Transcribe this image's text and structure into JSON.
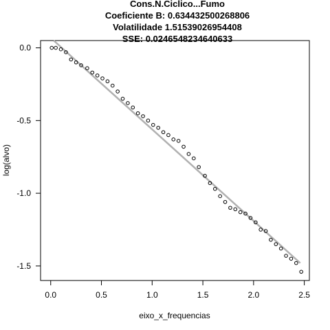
{
  "chart_data": {
    "type": "scatter",
    "title_lines": [
      "Cons.N.Ciclico...Fumo",
      "Coeficiente B:  0.634432500268806",
      "Volatilidade 1.51539026954408",
      "SSE: 0.0246548234640633"
    ],
    "xlabel": "eixo_x_frequencias",
    "ylabel": "log(alvo)",
    "xlim": [
      -0.1,
      2.55
    ],
    "ylim": [
      -1.6,
      0.05
    ],
    "x_ticks": [
      0.0,
      0.5,
      1.0,
      1.5,
      2.0,
      2.5
    ],
    "x_tick_labels": [
      "0.0",
      "0.5",
      "1.0",
      "1.5",
      "2.0",
      "2.5"
    ],
    "y_ticks": [
      0.0,
      -0.5,
      -1.0,
      -1.5
    ],
    "y_tick_labels": [
      "0.0",
      "-0.5",
      "-1.0",
      "-1.5"
    ],
    "grid": false,
    "series": [
      {
        "kind": "points",
        "marker": "open-circle",
        "color": "#000000",
        "x": [
          0.01,
          0.05,
          0.1,
          0.15,
          0.2,
          0.25,
          0.3,
          0.36,
          0.41,
          0.46,
          0.51,
          0.56,
          0.61,
          0.66,
          0.71,
          0.76,
          0.81,
          0.86,
          0.91,
          0.96,
          1.01,
          1.06,
          1.11,
          1.16,
          1.21,
          1.26,
          1.31,
          1.36,
          1.41,
          1.46,
          1.52,
          1.57,
          1.62,
          1.67,
          1.72,
          1.77,
          1.82,
          1.87,
          1.92,
          1.97,
          2.02,
          2.07,
          2.12,
          2.17,
          2.22,
          2.27,
          2.32,
          2.37,
          2.42,
          2.47
        ],
        "y": [
          0.0,
          0.0,
          -0.01,
          -0.03,
          -0.08,
          -0.1,
          -0.12,
          -0.14,
          -0.17,
          -0.19,
          -0.21,
          -0.23,
          -0.26,
          -0.3,
          -0.35,
          -0.38,
          -0.41,
          -0.45,
          -0.47,
          -0.5,
          -0.53,
          -0.55,
          -0.58,
          -0.6,
          -0.63,
          -0.64,
          -0.68,
          -0.73,
          -0.76,
          -0.82,
          -0.88,
          -0.93,
          -0.97,
          -1.02,
          -1.06,
          -1.1,
          -1.11,
          -1.13,
          -1.14,
          -1.17,
          -1.2,
          -1.25,
          -1.26,
          -1.32,
          -1.35,
          -1.38,
          -1.43,
          -1.45,
          -1.48,
          -1.54
        ]
      },
      {
        "kind": "line",
        "color": "#b0b0b0",
        "x": [
          0.03,
          2.46
        ],
        "y": [
          0.05,
          -1.48
        ]
      }
    ]
  }
}
